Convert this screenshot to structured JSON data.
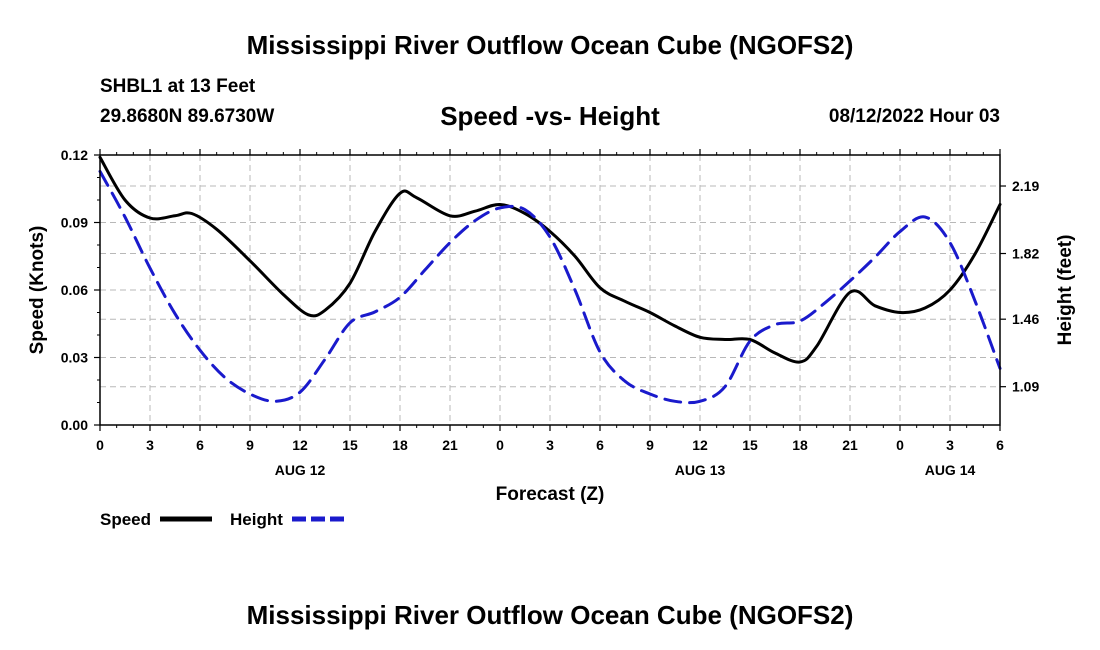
{
  "main_title": "Mississippi River Outflow Ocean Cube (NGOFS2)",
  "bottom_title": "Mississippi River Outflow Ocean Cube (NGOFS2)",
  "station": "SHBL1 at 13 Feet",
  "coords": "29.8680N  89.6730W",
  "subtitle": "Speed -vs- Height",
  "datetime": "08/12/2022 Hour 03",
  "chart_data": {
    "type": "line",
    "title": "Speed -vs- Height",
    "xlabel": "Forecast (Z)",
    "ylabel": "Speed (Knots)",
    "y2label": "Height (feet)",
    "xlim": [
      0,
      54
    ],
    "ylim": [
      0,
      0.12
    ],
    "y2lim": [
      0.88,
      2.36
    ],
    "x_ticks": [
      0,
      3,
      6,
      9,
      12,
      15,
      18,
      21,
      24,
      27,
      30,
      33,
      36,
      39,
      42,
      45,
      48,
      51,
      54
    ],
    "x_tick_labels": [
      "0",
      "3",
      "6",
      "9",
      "12",
      "15",
      "18",
      "21",
      "0",
      "3",
      "6",
      "9",
      "12",
      "15",
      "18",
      "21",
      "0",
      "3",
      "6"
    ],
    "date_labels": [
      {
        "x": 12,
        "label": "AUG 12"
      },
      {
        "x": 36,
        "label": "AUG 13"
      },
      {
        "x": 51,
        "label": "AUG 14"
      }
    ],
    "y_ticks": [
      0,
      0.03,
      0.06,
      0.09,
      0.12
    ],
    "y_tick_labels": [
      "0.00",
      "0.03",
      "0.06",
      "0.09",
      "0.12"
    ],
    "y2_ticks": [
      1.09,
      1.46,
      1.82,
      2.19
    ],
    "y2_tick_labels": [
      "1.09",
      "1.46",
      "1.82",
      "2.19"
    ],
    "grid": true,
    "legend": [
      {
        "name": "Speed",
        "color": "#000000",
        "style": "solid"
      },
      {
        "name": "Height",
        "color": "#1a1acc",
        "style": "dashed"
      }
    ],
    "series": [
      {
        "name": "Speed",
        "axis": "left",
        "color": "#000000",
        "x": [
          0,
          1.5,
          3,
          4.5,
          5.5,
          7,
          9,
          11,
          12.5,
          13.5,
          15,
          16.5,
          18,
          19,
          21,
          22.5,
          24,
          25.5,
          27,
          28.5,
          30,
          31.5,
          33,
          34.5,
          36,
          37.5,
          39,
          40.5,
          42,
          43,
          45,
          46.5,
          48,
          49.5,
          51,
          52.5,
          54
        ],
        "values": [
          0.119,
          0.1,
          0.092,
          0.093,
          0.094,
          0.087,
          0.073,
          0.058,
          0.049,
          0.051,
          0.063,
          0.086,
          0.103,
          0.101,
          0.093,
          0.095,
          0.098,
          0.094,
          0.086,
          0.075,
          0.061,
          0.055,
          0.05,
          0.044,
          0.039,
          0.038,
          0.038,
          0.032,
          0.028,
          0.035,
          0.059,
          0.053,
          0.05,
          0.052,
          0.06,
          0.076,
          0.098
        ]
      },
      {
        "name": "Height",
        "axis": "right",
        "color": "#1a1acc",
        "x": [
          0,
          1.5,
          3,
          4.5,
          6,
          7.5,
          9,
          10.5,
          12,
          13.5,
          15,
          16.5,
          18,
          19.5,
          21,
          22.5,
          24,
          25.5,
          27,
          28.5,
          30,
          31.5,
          33,
          34.5,
          36,
          37.5,
          39,
          40.5,
          42,
          43.5,
          45,
          46.5,
          48,
          49.5,
          51,
          52.5,
          54
        ],
        "values": [
          2.27,
          2.02,
          1.74,
          1.49,
          1.29,
          1.14,
          1.05,
          1.01,
          1.06,
          1.24,
          1.44,
          1.5,
          1.58,
          1.73,
          1.88,
          2.0,
          2.07,
          2.06,
          1.91,
          1.62,
          1.28,
          1.12,
          1.05,
          1.01,
          1.01,
          1.09,
          1.34,
          1.43,
          1.45,
          1.55,
          1.67,
          1.8,
          1.94,
          2.02,
          1.88,
          1.56,
          1.19
        ]
      }
    ]
  }
}
